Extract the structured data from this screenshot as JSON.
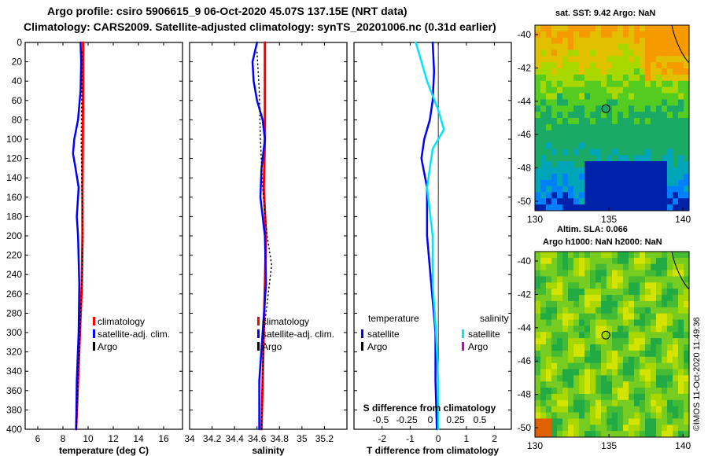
{
  "header": {
    "title_line1": "Argo profile: csiro 5906615_9 06-Oct-2020 45.07S 137.15E (NRT data)",
    "title_line2": "Climatology: CARS2009. Satellite-adjusted climatology: synTS_20201006.nc (0.31d earlier)"
  },
  "colors": {
    "climatology": "#ff0000",
    "satellite": "#0000ff",
    "argo": "#000000",
    "sat_salinity": "#00e5ff",
    "argo_salinity": "#cc00cc"
  },
  "chart_data": [
    {
      "type": "line",
      "name": "temperature",
      "xlabel": "temperature (deg C)",
      "ylabel": "",
      "xlim": [
        5,
        17.5
      ],
      "ylim": [
        400,
        0
      ],
      "xticks": [
        6,
        8,
        10,
        12,
        14,
        16
      ],
      "xtick_labels": [
        "6",
        "8",
        "10",
        "12",
        "14",
        "16"
      ],
      "yticks": [
        0,
        20,
        40,
        60,
        80,
        100,
        120,
        140,
        160,
        180,
        200,
        220,
        240,
        260,
        280,
        300,
        320,
        340,
        360,
        380,
        400
      ],
      "ytick_labels": [
        "0",
        "20",
        "40",
        "60",
        "80",
        "100",
        "120",
        "140",
        "160",
        "180",
        "200",
        "220",
        "240",
        "260",
        "280",
        "300",
        "320",
        "340",
        "360",
        "380",
        "400"
      ],
      "legend": [
        "climatology",
        "satellite-adj. clim.",
        "Argo"
      ],
      "series": [
        {
          "name": "climatology",
          "depth": [
            0,
            50,
            100,
            150,
            200,
            250,
            300,
            350,
            400
          ],
          "values": [
            9.6,
            9.6,
            9.58,
            9.55,
            9.55,
            9.5,
            9.35,
            9.2,
            9.05
          ]
        },
        {
          "name": "satellite-adj. clim.",
          "depth": [
            0,
            20,
            50,
            80,
            100,
            115,
            130,
            150,
            180,
            200,
            250,
            300,
            350,
            400
          ],
          "values": [
            9.4,
            9.45,
            9.4,
            9.2,
            8.9,
            8.8,
            9.0,
            9.25,
            9.1,
            9.2,
            9.3,
            9.25,
            9.1,
            9.05
          ]
        },
        {
          "name": "Argo",
          "depth": [
            10,
            50,
            100,
            150,
            200,
            250,
            300,
            350,
            400
          ],
          "values": [
            9.5,
            9.5,
            9.45,
            9.5,
            9.6,
            9.5,
            9.35,
            9.2,
            9.05
          ]
        }
      ]
    },
    {
      "type": "line",
      "name": "salinity",
      "xlabel": "salinity",
      "ylabel": "",
      "xlim": [
        34.0,
        35.4
      ],
      "ylim": [
        400,
        0
      ],
      "xticks": [
        34,
        34.2,
        34.4,
        34.6,
        34.8,
        35,
        35.2
      ],
      "xtick_labels": [
        "34",
        "34.2",
        "34.4",
        "34.6",
        "34.8",
        "35",
        "35.2"
      ],
      "legend": [
        "climatology",
        "satellite-adj. clim.",
        "Argo"
      ],
      "series": [
        {
          "name": "climatology",
          "depth": [
            0,
            50,
            100,
            150,
            200,
            250,
            300,
            350,
            400
          ],
          "values": [
            34.67,
            34.67,
            34.67,
            34.66,
            34.68,
            34.67,
            34.66,
            34.65,
            34.64
          ]
        },
        {
          "name": "satellite-adj. clim.",
          "depth": [
            0,
            20,
            40,
            60,
            80,
            100,
            130,
            160,
            200,
            250,
            300,
            350,
            400
          ],
          "values": [
            34.6,
            34.56,
            34.57,
            34.6,
            34.65,
            34.67,
            34.64,
            34.63,
            34.67,
            34.68,
            34.65,
            34.62,
            34.62
          ]
        },
        {
          "name": "Argo",
          "depth": [
            10,
            50,
            100,
            150,
            200,
            230,
            260,
            300,
            350,
            400
          ],
          "values": [
            34.6,
            34.62,
            34.63,
            34.65,
            34.69,
            34.73,
            34.7,
            34.66,
            34.65,
            34.64
          ]
        }
      ]
    },
    {
      "type": "line",
      "name": "difference",
      "xlabel": "T difference from climatology",
      "ylabel": "",
      "xlim": [
        -3,
        2.6
      ],
      "ylim": [
        400,
        0
      ],
      "xticks": [
        -2,
        -1,
        0,
        1,
        2
      ],
      "xtick_labels": [
        "-2",
        "-1",
        "0",
        "1",
        "2"
      ],
      "s_axis_label": "S difference from climatology",
      "s_ticks": [
        "-0.5",
        "-0.25",
        "0",
        "0.25",
        "0.5"
      ],
      "legend_temperature": "temperature",
      "legend_salinity": "salinity",
      "legend_items": [
        "satellite",
        "Argo",
        "satellite",
        "Argo"
      ],
      "series": [
        {
          "name": "temperature satellite",
          "depth": [
            0,
            30,
            60,
            80,
            100,
            120,
            150,
            200,
            250,
            300,
            350,
            400
          ],
          "values": [
            -0.2,
            -0.15,
            -0.2,
            -0.3,
            -0.5,
            -0.6,
            -0.4,
            -0.4,
            -0.25,
            -0.1,
            -0.1,
            -0.05
          ]
        },
        {
          "name": "salinity satellite",
          "depth": [
            0,
            40,
            70,
            90,
            110,
            150,
            200,
            250,
            300,
            350,
            400
          ],
          "values": [
            -0.2,
            -0.1,
            0.0,
            0.05,
            -0.05,
            -0.1,
            -0.05,
            -0.05,
            -0.02,
            0.0,
            0.0
          ]
        }
      ]
    },
    {
      "type": "heatmap",
      "name": "sst-map",
      "title": "sat. SST: 9.42 Argo: NaN",
      "xticks": [
        "130",
        "135",
        "140"
      ],
      "yticks": [
        "-40",
        "-42",
        "-44",
        "-46",
        "-48",
        "-50"
      ]
    },
    {
      "type": "heatmap",
      "name": "sla-map",
      "title_line1": "Altim. SLA: 0.066",
      "title_line2": "Argo h1000: NaN h2000: NaN",
      "xticks": [
        "130",
        "135",
        "140"
      ],
      "yticks": [
        "-40",
        "-42",
        "-44",
        "-46",
        "-48",
        "-50"
      ]
    }
  ],
  "footer": {
    "stamp": "©IMOS 11-Oct-2020 11:49:36"
  }
}
